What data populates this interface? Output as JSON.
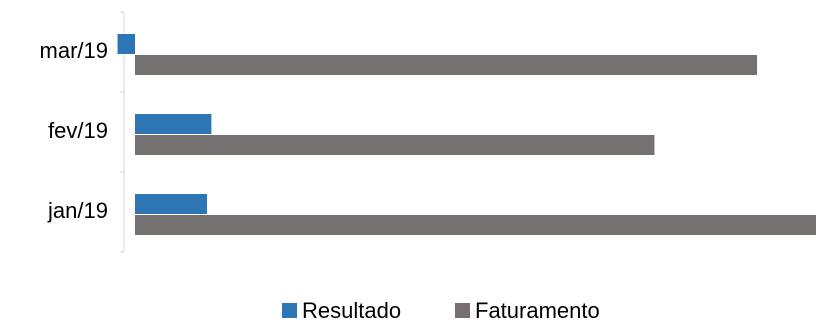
{
  "chart_data": {
    "type": "bar",
    "orientation": "horizontal",
    "categories": [
      "mar/19",
      "fev/19",
      "jan/19"
    ],
    "series": [
      {
        "name": "Resultado",
        "color": "#2e75b6",
        "values": [
          -8,
          35,
          33
        ]
      },
      {
        "name": "Faturamento",
        "color": "#767171",
        "values": [
          285,
          238,
          312
        ]
      }
    ],
    "title": "",
    "xlabel": "",
    "ylabel": "",
    "xlim": [
      -10,
      312
    ],
    "grid": false,
    "legend_position": "bottom"
  }
}
